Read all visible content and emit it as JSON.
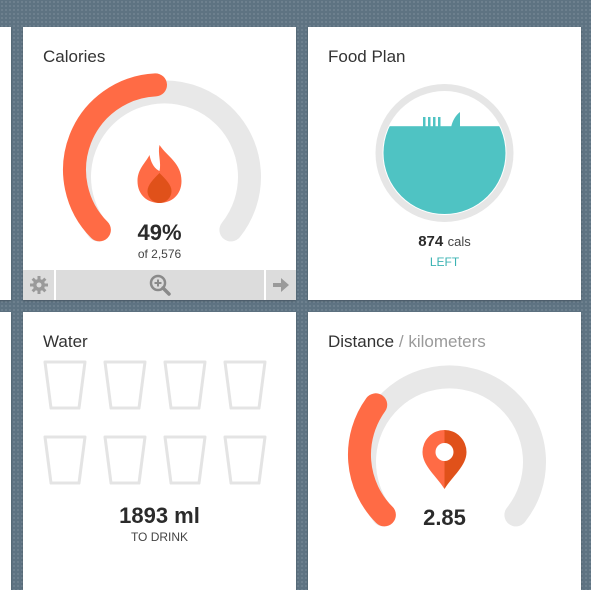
{
  "calories": {
    "title": "Calories",
    "percent_text": "49%",
    "percent_value": 0.49,
    "of_text": "of 2,576",
    "icon": "flame-icon",
    "toolbar": {
      "settings_icon": "gear-icon",
      "zoom_icon": "zoom-in-icon",
      "next_icon": "arrow-right-icon"
    }
  },
  "food_plan": {
    "title": "Food Plan",
    "calories_value": "874",
    "calories_unit": "cals",
    "status": "LEFT",
    "fill_fraction": 0.72
  },
  "water": {
    "title": "Water",
    "amount": "1893 ml",
    "status": "TO DRINK",
    "glasses_total": 8,
    "glasses_filled": 0
  },
  "distance": {
    "title": "Distance",
    "subtitle": "/ kilometers",
    "value": "2.85",
    "progress_fraction": 0.3,
    "icon": "map-pin-icon"
  },
  "colors": {
    "accent_orange": "#ff6b45",
    "accent_dark_orange": "#e0511a",
    "teal": "#4fc3c3",
    "track_gray": "#e8e8e8",
    "background": "#5e7382"
  }
}
